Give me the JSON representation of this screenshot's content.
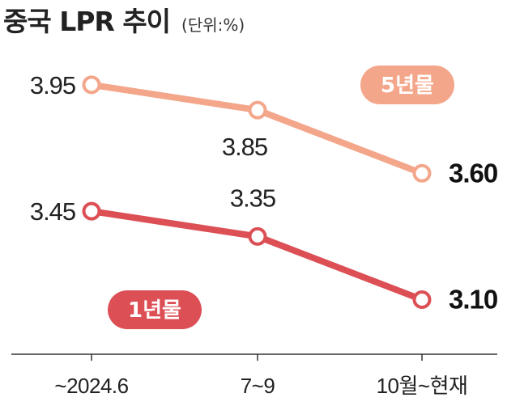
{
  "title": "중국 LPR 추이",
  "unit": "(단위:%)",
  "colors": {
    "five_year": "#f3a68a",
    "one_year": "#dc4f55",
    "axis": "#333333"
  },
  "chart_data": {
    "type": "line",
    "title": "중국 LPR 추이",
    "categories": [
      "~2024.6",
      "7~9",
      "10월~현재"
    ],
    "ylim": [
      2.9,
      4.1
    ],
    "grid": false,
    "series": [
      {
        "name": "5년물",
        "values": [
          3.95,
          3.85,
          3.6
        ],
        "labels": [
          "3.95",
          "3.85",
          "3.60"
        ],
        "color": "#f3a68a"
      },
      {
        "name": "1년물",
        "values": [
          3.45,
          3.35,
          3.1
        ],
        "labels": [
          "3.45",
          "3.35",
          "3.10"
        ],
        "color": "#dc4f55"
      }
    ]
  }
}
